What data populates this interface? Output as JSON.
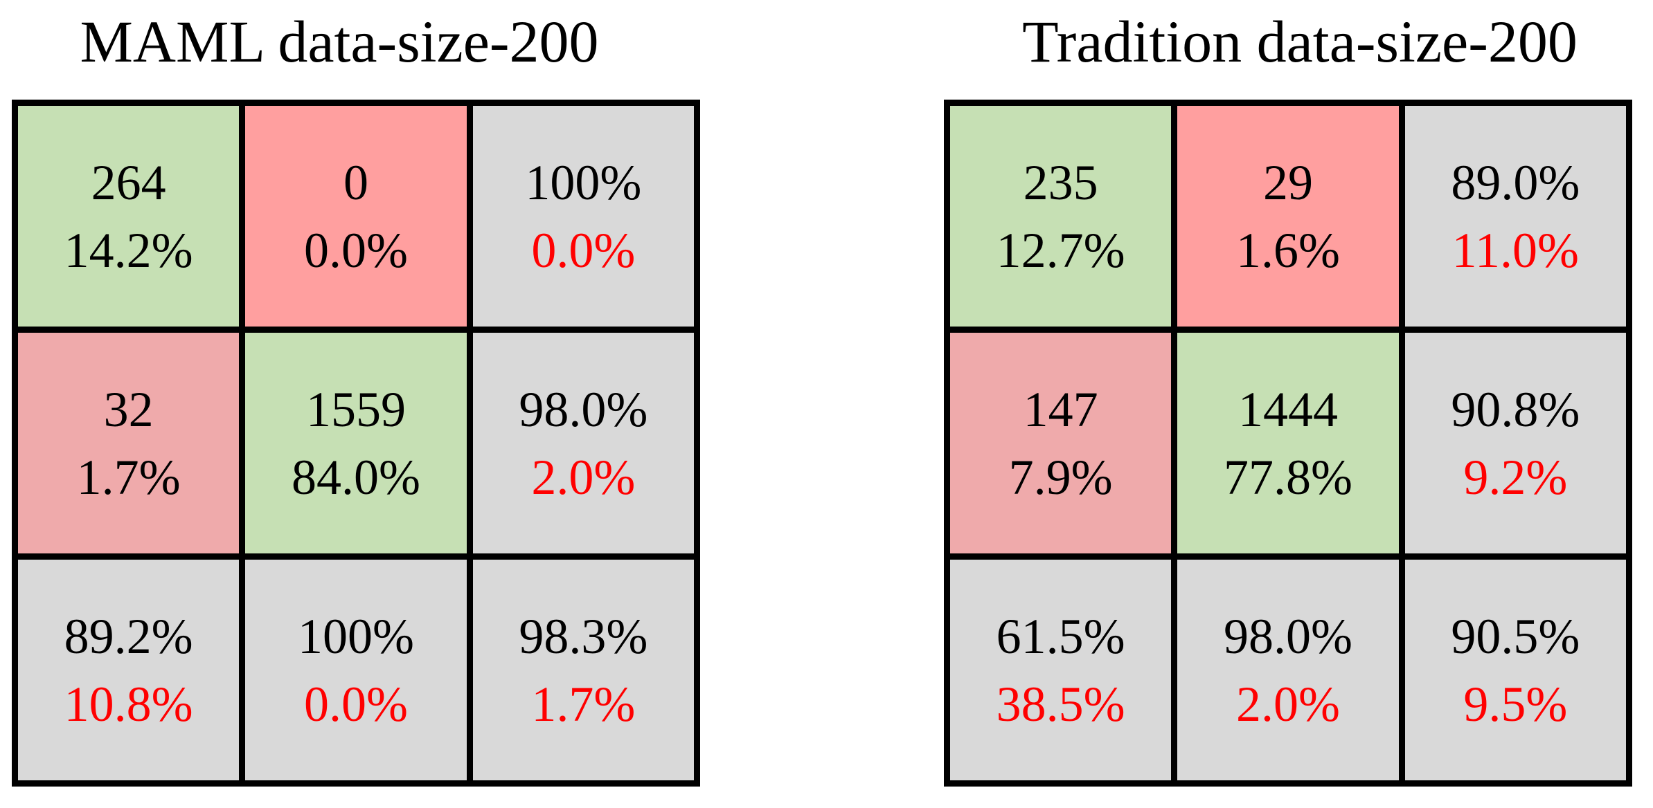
{
  "colors": {
    "correct": "#c6e0b4",
    "error": "#ff9f9f",
    "error_alt": "#efaaab",
    "summary": "#d9d9d9",
    "border": "#000000",
    "text": "#000000",
    "secondary_text": "#ff0000"
  },
  "chart_data": [
    {
      "type": "table",
      "title": "MAML data-size-200",
      "rows": [
        [
          {
            "top": "264",
            "bottom": "14.2%",
            "kind": "correct",
            "bottom_red": false
          },
          {
            "top": "0",
            "bottom": "0.0%",
            "kind": "error",
            "bottom_red": false
          },
          {
            "top": "100%",
            "bottom": "0.0%",
            "kind": "summary",
            "bottom_red": true
          }
        ],
        [
          {
            "top": "32",
            "bottom": "1.7%",
            "kind": "error_alt",
            "bottom_red": false
          },
          {
            "top": "1559",
            "bottom": "84.0%",
            "kind": "correct",
            "bottom_red": false
          },
          {
            "top": "98.0%",
            "bottom": "2.0%",
            "kind": "summary",
            "bottom_red": true
          }
        ],
        [
          {
            "top": "89.2%",
            "bottom": "10.8%",
            "kind": "summary",
            "bottom_red": true
          },
          {
            "top": "100%",
            "bottom": "0.0%",
            "kind": "summary",
            "bottom_red": true
          },
          {
            "top": "98.3%",
            "bottom": "1.7%",
            "kind": "summary",
            "bottom_red": true
          }
        ]
      ]
    },
    {
      "type": "table",
      "title": "Tradition data-size-200",
      "rows": [
        [
          {
            "top": "235",
            "bottom": "12.7%",
            "kind": "correct",
            "bottom_red": false
          },
          {
            "top": "29",
            "bottom": "1.6%",
            "kind": "error",
            "bottom_red": false
          },
          {
            "top": "89.0%",
            "bottom": "11.0%",
            "kind": "summary",
            "bottom_red": true
          }
        ],
        [
          {
            "top": "147",
            "bottom": "7.9%",
            "kind": "error_alt",
            "bottom_red": false
          },
          {
            "top": "1444",
            "bottom": "77.8%",
            "kind": "correct",
            "bottom_red": false
          },
          {
            "top": "90.8%",
            "bottom": "9.2%",
            "kind": "summary",
            "bottom_red": true
          }
        ],
        [
          {
            "top": "61.5%",
            "bottom": "38.5%",
            "kind": "summary",
            "bottom_red": true
          },
          {
            "top": "98.0%",
            "bottom": "2.0%",
            "kind": "summary",
            "bottom_red": true
          },
          {
            "top": "90.5%",
            "bottom": "9.5%",
            "kind": "summary",
            "bottom_red": true
          }
        ]
      ]
    }
  ]
}
